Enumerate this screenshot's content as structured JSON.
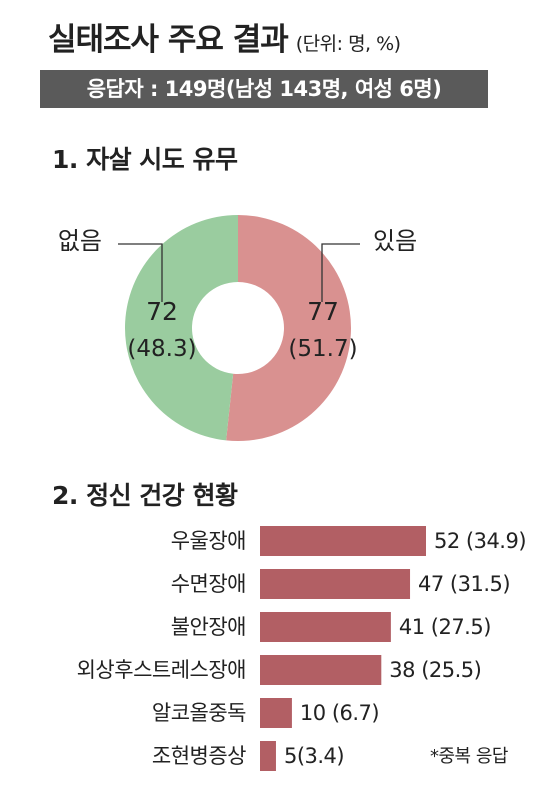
{
  "header": {
    "title": "실태조사 주요 결과",
    "unit": "(단위: 명, %)",
    "respondents": "응답자 : 149명(남성 143명, 여성 6명)"
  },
  "section1": {
    "title": "1. 자살 시도 유무"
  },
  "section2": {
    "title": "2. 정신 건강 현황"
  },
  "footnote": "*중복 응답",
  "chart_data": [
    {
      "type": "pie",
      "title": "1. 자살 시도 유무",
      "categories": [
        "있음",
        "없음"
      ],
      "values": [
        77,
        72
      ],
      "percents": [
        51.7,
        48.3
      ],
      "value_labels": [
        "77",
        "72"
      ],
      "percent_labels": [
        "(51.7)",
        "(48.3)"
      ],
      "colors": [
        "#d99190",
        "#9acc9f"
      ],
      "donut": true
    },
    {
      "type": "bar",
      "orientation": "horizontal",
      "title": "2. 정신 건강 현황",
      "categories": [
        "우울장애",
        "수면장애",
        "불안장애",
        "외상후스트레스장애",
        "알코올중독",
        "조현병증상"
      ],
      "values": [
        52,
        47,
        41,
        38,
        10,
        5
      ],
      "percents": [
        34.9,
        31.5,
        27.5,
        25.5,
        6.7,
        3.4
      ],
      "labels": [
        "52 (34.9)",
        "47 (31.5)",
        "41 (27.5)",
        "38 (25.5)",
        "10 (6.7)",
        "5(3.4)"
      ],
      "color": "#b25f64"
    }
  ]
}
